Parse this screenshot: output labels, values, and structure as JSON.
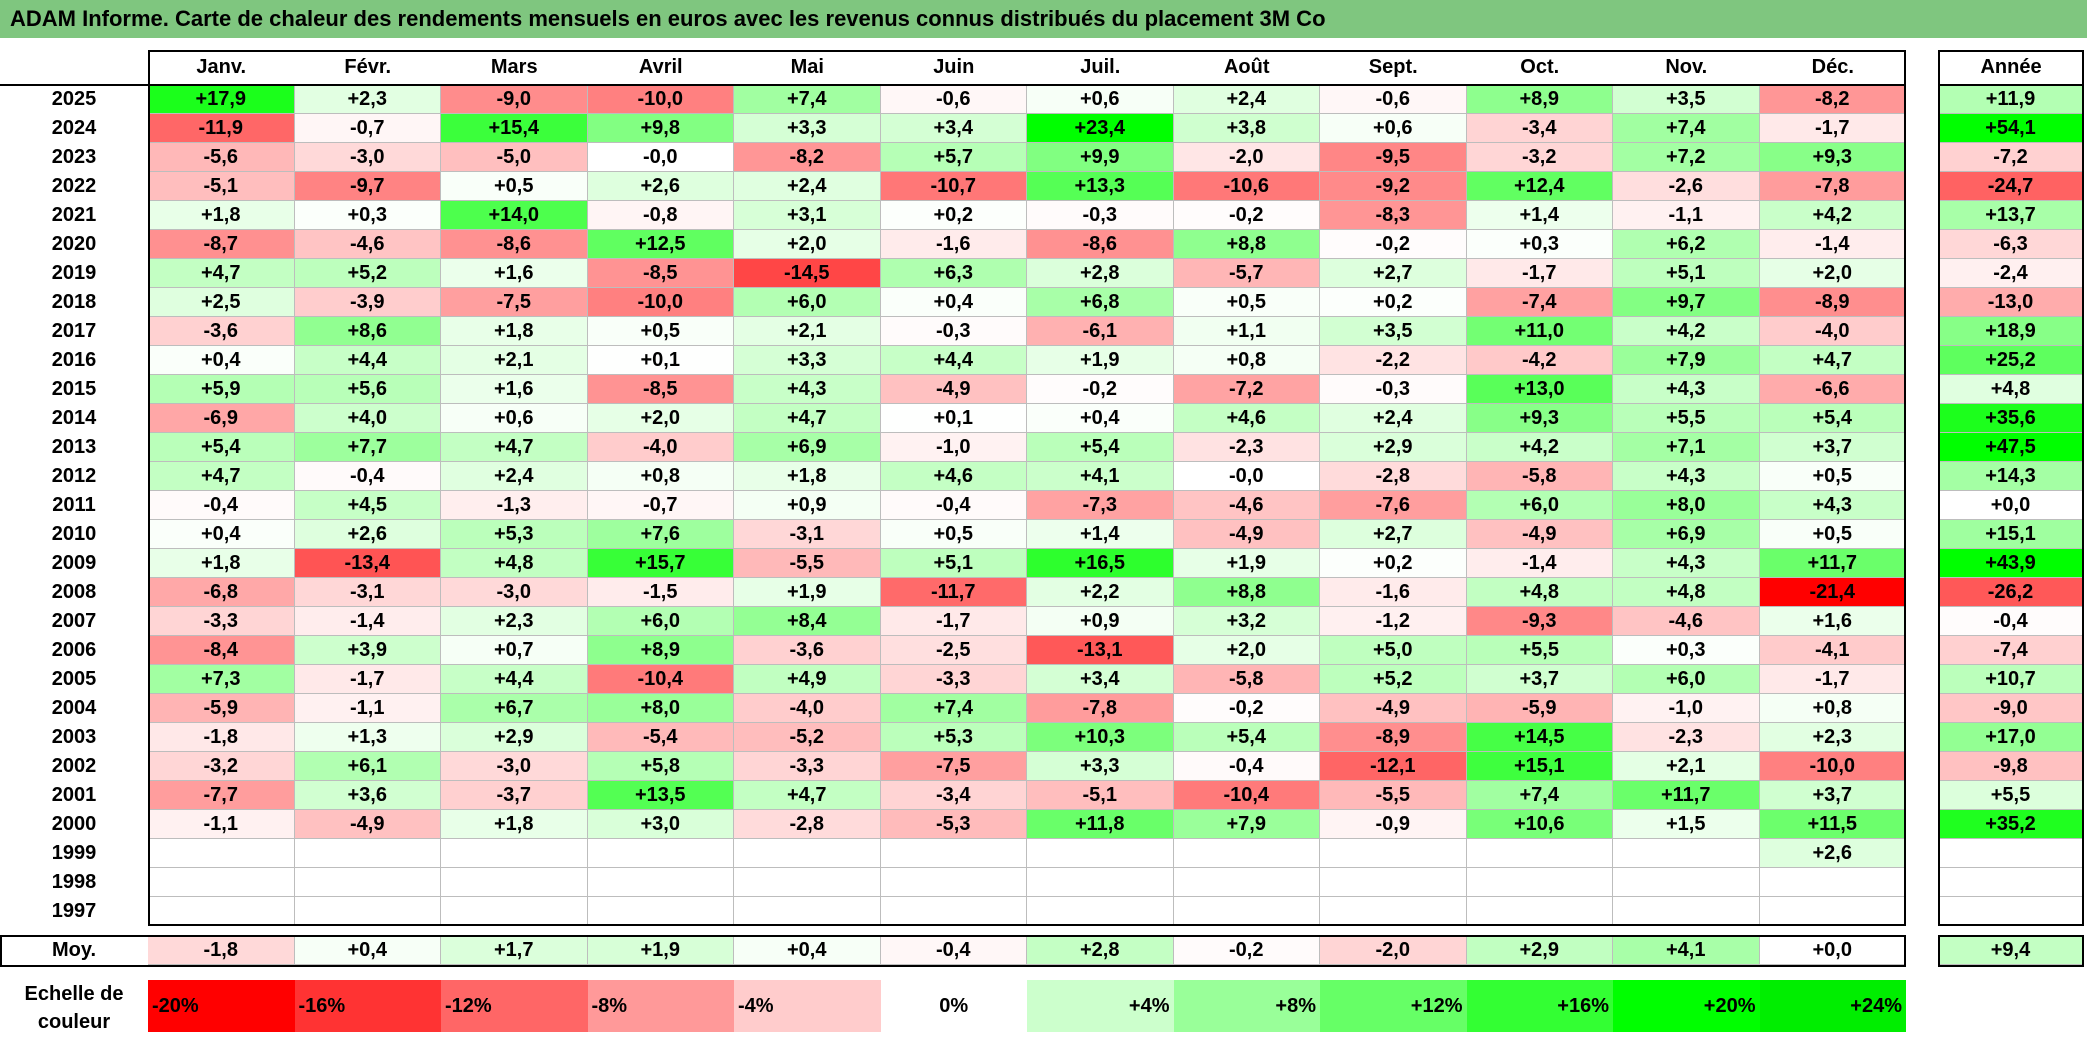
{
  "title": "ADAM Informe. Carte de chaleur des rendements mensuels en euros avec les revenus connus distribués du placement 3M Co",
  "chart_data": {
    "type": "heatmap",
    "title": "ADAM Informe. Carte de chaleur des rendements mensuels en euros avec les revenus connus distribués du placement 3M Co",
    "columns": [
      "Janv.",
      "Févr.",
      "Mars",
      "Avril",
      "Mai",
      "Juin",
      "Juil.",
      "Août",
      "Sept.",
      "Oct.",
      "Nov.",
      "Déc."
    ],
    "annual_label": "Année",
    "rows": [
      {
        "year": "2025",
        "values": [
          "+17,9",
          "+2,3",
          "-9,0",
          "-10,0",
          "+7,4",
          "-0,6",
          "+0,6",
          "+2,4",
          "-0,6",
          "+8,9",
          "+3,5",
          "-8,2"
        ],
        "annual": "+11,9"
      },
      {
        "year": "2024",
        "values": [
          "-11,9",
          "-0,7",
          "+15,4",
          "+9,8",
          "+3,3",
          "+3,4",
          "+23,4",
          "+3,8",
          "+0,6",
          "-3,4",
          "+7,4",
          "-1,7"
        ],
        "annual": "+54,1"
      },
      {
        "year": "2023",
        "values": [
          "-5,6",
          "-3,0",
          "-5,0",
          "-0,0",
          "-8,2",
          "+5,7",
          "+9,9",
          "-2,0",
          "-9,5",
          "-3,2",
          "+7,2",
          "+9,3"
        ],
        "annual": "-7,2"
      },
      {
        "year": "2022",
        "values": [
          "-5,1",
          "-9,7",
          "+0,5",
          "+2,6",
          "+2,4",
          "-10,7",
          "+13,3",
          "-10,6",
          "-9,2",
          "+12,4",
          "-2,6",
          "-7,8"
        ],
        "annual": "-24,7"
      },
      {
        "year": "2021",
        "values": [
          "+1,8",
          "+0,3",
          "+14,0",
          "-0,8",
          "+3,1",
          "+0,2",
          "-0,3",
          "-0,2",
          "-8,3",
          "+1,4",
          "-1,1",
          "+4,2"
        ],
        "annual": "+13,7"
      },
      {
        "year": "2020",
        "values": [
          "-8,7",
          "-4,6",
          "-8,6",
          "+12,5",
          "+2,0",
          "-1,6",
          "-8,6",
          "+8,8",
          "-0,2",
          "+0,3",
          "+6,2",
          "-1,4"
        ],
        "annual": "-6,3"
      },
      {
        "year": "2019",
        "values": [
          "+4,7",
          "+5,2",
          "+1,6",
          "-8,5",
          "-14,5",
          "+6,3",
          "+2,8",
          "-5,7",
          "+2,7",
          "-1,7",
          "+5,1",
          "+2,0"
        ],
        "annual": "-2,4"
      },
      {
        "year": "2018",
        "values": [
          "+2,5",
          "-3,9",
          "-7,5",
          "-10,0",
          "+6,0",
          "+0,4",
          "+6,8",
          "+0,5",
          "+0,2",
          "-7,4",
          "+9,7",
          "-8,9"
        ],
        "annual": "-13,0"
      },
      {
        "year": "2017",
        "values": [
          "-3,6",
          "+8,6",
          "+1,8",
          "+0,5",
          "+2,1",
          "-0,3",
          "-6,1",
          "+1,1",
          "+3,5",
          "+11,0",
          "+4,2",
          "-4,0"
        ],
        "annual": "+18,9"
      },
      {
        "year": "2016",
        "values": [
          "+0,4",
          "+4,4",
          "+2,1",
          "+0,1",
          "+3,3",
          "+4,4",
          "+1,9",
          "+0,8",
          "-2,2",
          "-4,2",
          "+7,9",
          "+4,7"
        ],
        "annual": "+25,2"
      },
      {
        "year": "2015",
        "values": [
          "+5,9",
          "+5,6",
          "+1,6",
          "-8,5",
          "+4,3",
          "-4,9",
          "-0,2",
          "-7,2",
          "-0,3",
          "+13,0",
          "+4,3",
          "-6,6"
        ],
        "annual": "+4,8"
      },
      {
        "year": "2014",
        "values": [
          "-6,9",
          "+4,0",
          "+0,6",
          "+2,0",
          "+4,7",
          "+0,1",
          "+0,4",
          "+4,6",
          "+2,4",
          "+9,3",
          "+5,5",
          "+5,4"
        ],
        "annual": "+35,6"
      },
      {
        "year": "2013",
        "values": [
          "+5,4",
          "+7,7",
          "+4,7",
          "-4,0",
          "+6,9",
          "-1,0",
          "+5,4",
          "-2,3",
          "+2,9",
          "+4,2",
          "+7,1",
          "+3,7"
        ],
        "annual": "+47,5"
      },
      {
        "year": "2012",
        "values": [
          "+4,7",
          "-0,4",
          "+2,4",
          "+0,8",
          "+1,8",
          "+4,6",
          "+4,1",
          "-0,0",
          "-2,8",
          "-5,8",
          "+4,3",
          "+0,5"
        ],
        "annual": "+14,3"
      },
      {
        "year": "2011",
        "values": [
          "-0,4",
          "+4,5",
          "-1,3",
          "-0,7",
          "+0,9",
          "-0,4",
          "-7,3",
          "-4,6",
          "-7,6",
          "+6,0",
          "+8,0",
          "+4,3"
        ],
        "annual": "+0,0"
      },
      {
        "year": "2010",
        "values": [
          "+0,4",
          "+2,6",
          "+5,3",
          "+7,6",
          "-3,1",
          "+0,5",
          "+1,4",
          "-4,9",
          "+2,7",
          "-4,9",
          "+6,9",
          "+0,5"
        ],
        "annual": "+15,1"
      },
      {
        "year": "2009",
        "values": [
          "+1,8",
          "-13,4",
          "+4,8",
          "+15,7",
          "-5,5",
          "+5,1",
          "+16,5",
          "+1,9",
          "+0,2",
          "-1,4",
          "+4,3",
          "+11,7"
        ],
        "annual": "+43,9"
      },
      {
        "year": "2008",
        "values": [
          "-6,8",
          "-3,1",
          "-3,0",
          "-1,5",
          "+1,9",
          "-11,7",
          "+2,2",
          "+8,8",
          "-1,6",
          "+4,8",
          "+4,8",
          "-21,4"
        ],
        "annual": "-26,2"
      },
      {
        "year": "2007",
        "values": [
          "-3,3",
          "-1,4",
          "+2,3",
          "+6,0",
          "+8,4",
          "-1,7",
          "+0,9",
          "+3,2",
          "-1,2",
          "-9,3",
          "-4,6",
          "+1,6"
        ],
        "annual": "-0,4"
      },
      {
        "year": "2006",
        "values": [
          "-8,4",
          "+3,9",
          "+0,7",
          "+8,9",
          "-3,6",
          "-2,5",
          "-13,1",
          "+2,0",
          "+5,0",
          "+5,5",
          "+0,3",
          "-4,1"
        ],
        "annual": "-7,4"
      },
      {
        "year": "2005",
        "values": [
          "+7,3",
          "-1,7",
          "+4,4",
          "-10,4",
          "+4,9",
          "-3,3",
          "+3,4",
          "-5,8",
          "+5,2",
          "+3,7",
          "+6,0",
          "-1,7"
        ],
        "annual": "+10,7"
      },
      {
        "year": "2004",
        "values": [
          "-5,9",
          "-1,1",
          "+6,7",
          "+8,0",
          "-4,0",
          "+7,4",
          "-7,8",
          "-0,2",
          "-4,9",
          "-5,9",
          "-1,0",
          "+0,8"
        ],
        "annual": "-9,0"
      },
      {
        "year": "2003",
        "values": [
          "-1,8",
          "+1,3",
          "+2,9",
          "-5,4",
          "-5,2",
          "+5,3",
          "+10,3",
          "+5,4",
          "-8,9",
          "+14,5",
          "-2,3",
          "+2,3"
        ],
        "annual": "+17,0"
      },
      {
        "year": "2002",
        "values": [
          "-3,2",
          "+6,1",
          "-3,0",
          "+5,8",
          "-3,3",
          "-7,5",
          "+3,3",
          "-0,4",
          "-12,1",
          "+15,1",
          "+2,1",
          "-10,0"
        ],
        "annual": "-9,8"
      },
      {
        "year": "2001",
        "values": [
          "-7,7",
          "+3,6",
          "-3,7",
          "+13,5",
          "+4,7",
          "-3,4",
          "-5,1",
          "-10,4",
          "-5,5",
          "+7,4",
          "+11,7",
          "+3,7"
        ],
        "annual": "+5,5"
      },
      {
        "year": "2000",
        "values": [
          "-1,1",
          "-4,9",
          "+1,8",
          "+3,0",
          "-2,8",
          "-5,3",
          "+11,8",
          "+7,9",
          "-0,9",
          "+10,6",
          "+1,5",
          "+11,5"
        ],
        "annual": "+35,2"
      },
      {
        "year": "1999",
        "values": [
          "",
          "",
          "",
          "",
          "",
          "",
          "",
          "",
          "",
          "",
          "",
          "+2,6"
        ],
        "annual": ""
      },
      {
        "year": "1998",
        "values": [
          "",
          "",
          "",
          "",
          "",
          "",
          "",
          "",
          "",
          "",
          "",
          ""
        ],
        "annual": ""
      },
      {
        "year": "1997",
        "values": [
          "",
          "",
          "",
          "",
          "",
          "",
          "",
          "",
          "",
          "",
          "",
          ""
        ],
        "annual": ""
      }
    ],
    "average": {
      "label": "Moy.",
      "values": [
        "-1,8",
        "+0,4",
        "+1,7",
        "+1,9",
        "+0,4",
        "-0,4",
        "+2,8",
        "-0,2",
        "-2,0",
        "+2,9",
        "+4,1",
        "+0,0"
      ],
      "annual": "+9,4"
    },
    "color_scale": {
      "label": "Echelle de couleur",
      "stops": [
        "-20%",
        "-16%",
        "-12%",
        "-8%",
        "-4%",
        "0%",
        "+4%",
        "+8%",
        "+12%",
        "+16%",
        "+20%",
        "+24%"
      ],
      "colors": [
        "#ff0000",
        "#ff3333",
        "#ff6666",
        "#ff9999",
        "#ffcccc",
        "#ffffff",
        "#ccffcc",
        "#99ff99",
        "#66ff66",
        "#33ff33",
        "#00ff00",
        "#00ee00"
      ]
    }
  }
}
